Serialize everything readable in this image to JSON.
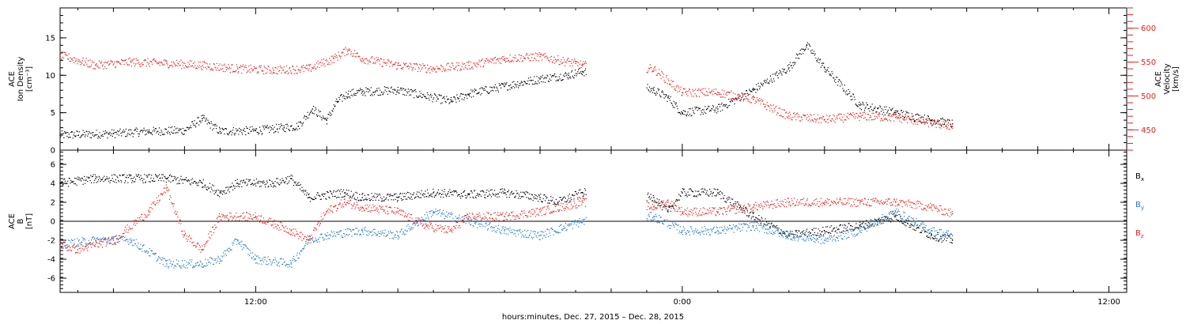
{
  "colors": {
    "black": "#000000",
    "red": "#e8211f",
    "blue": "#1f78c8"
  },
  "x_label": "hours:minutes, Dec. 27, 2015 – Dec. 28, 2015",
  "x_ticks": [
    {
      "label": "12:00",
      "hours": 12
    },
    {
      "label": "0:00",
      "hours": 24
    },
    {
      "label": "12:00",
      "hours": 36
    }
  ],
  "chart_data": [
    {
      "type": "scatter",
      "panel": "top",
      "x_unit": "hours since Dec. 27, 2015 0:00",
      "xlim": [
        6.5,
        36.5
      ],
      "left_axis": {
        "label_lines": [
          "ACE",
          "Ion Density",
          "[cm⁻³]"
        ],
        "ylim": [
          0,
          19
        ],
        "ticks": [
          "0",
          "5",
          "10",
          "15"
        ],
        "tick_values": [
          0,
          5,
          10,
          15
        ]
      },
      "right_axis": {
        "label_lines": [
          "ACE",
          "Velocity",
          "[km/s]"
        ],
        "ylim": [
          420,
          630
        ],
        "ticks": [
          "450",
          "500",
          "550",
          "600"
        ],
        "tick_values": [
          450,
          500,
          550,
          600
        ]
      },
      "data_gap": [
        21.3,
        23.0
      ],
      "series": [
        {
          "key": "density",
          "axis": "left",
          "color": "black",
          "points": [
            [
              6.5,
              2.0
            ],
            [
              8,
              2.2
            ],
            [
              9,
              2.5
            ],
            [
              10,
              2.6
            ],
            [
              10.5,
              4.2
            ],
            [
              11,
              2.5
            ],
            [
              12,
              2.6
            ],
            [
              12.8,
              3.0
            ],
            [
              13.2,
              3.2
            ],
            [
              13.6,
              5.5
            ],
            [
              14,
              4.0
            ],
            [
              14.3,
              6.5
            ],
            [
              14.6,
              7.5
            ],
            [
              15,
              7.8
            ],
            [
              16,
              8.0
            ],
            [
              17.5,
              6.5
            ],
            [
              18,
              7.5
            ],
            [
              19,
              8.5
            ],
            [
              20,
              9.5
            ],
            [
              20.8,
              10.0
            ],
            [
              21.2,
              10.5
            ],
            [
              23.2,
              8.0
            ],
            [
              23.6,
              7.0
            ],
            [
              24,
              5.0
            ],
            [
              25,
              5.5
            ],
            [
              26,
              8.0
            ],
            [
              27,
              11.0
            ],
            [
              27.5,
              14.0
            ],
            [
              28,
              11.0
            ],
            [
              29,
              6.0
            ],
            [
              30,
              5.0
            ],
            [
              31,
              4.0
            ],
            [
              31.6,
              3.5
            ]
          ]
        },
        {
          "key": "velocity",
          "axis": "right",
          "color": "red",
          "points": [
            [
              6.5,
              560
            ],
            [
              7.5,
              545
            ],
            [
              8.5,
              550
            ],
            [
              9.5,
              548
            ],
            [
              10.5,
              545
            ],
            [
              11.5,
              540
            ],
            [
              12.5,
              538
            ],
            [
              13.5,
              540
            ],
            [
              14.2,
              555
            ],
            [
              14.6,
              568
            ],
            [
              15,
              555
            ],
            [
              16,
              545
            ],
            [
              17,
              540
            ],
            [
              18,
              545
            ],
            [
              19,
              555
            ],
            [
              20,
              558
            ],
            [
              21,
              548
            ],
            [
              21.2,
              545
            ],
            [
              23.2,
              540
            ],
            [
              24,
              505
            ],
            [
              25,
              505
            ],
            [
              26,
              495
            ],
            [
              27,
              470
            ],
            [
              28,
              465
            ],
            [
              29,
              470
            ],
            [
              30,
              468
            ],
            [
              31,
              460
            ],
            [
              31.6,
              455
            ]
          ]
        }
      ]
    },
    {
      "type": "scatter",
      "panel": "bottom",
      "x_unit": "hours since Dec. 27, 2015 0:00",
      "xlim": [
        6.5,
        36.5
      ],
      "left_axis": {
        "label_lines": [
          "ACE",
          "B",
          "[nT]"
        ],
        "ylim": [
          -7.5,
          7.5
        ],
        "ticks": [
          "-6",
          "-4",
          "-2",
          "0",
          "2",
          "4",
          "6"
        ],
        "tick_values": [
          -6,
          -4,
          -2,
          0,
          2,
          4,
          6
        ]
      },
      "zero_line": true,
      "data_gap": [
        21.3,
        23.0
      ],
      "legend": [
        {
          "name": "Bx",
          "base": "B",
          "sub": "x",
          "color": "black"
        },
        {
          "name": "By",
          "base": "B",
          "sub": "y",
          "color": "blue"
        },
        {
          "name": "Bz",
          "base": "B",
          "sub": "z",
          "color": "red"
        }
      ],
      "series": [
        {
          "name": "Bx",
          "color": "black",
          "points": [
            [
              6.5,
              4.0
            ],
            [
              7.5,
              4.5
            ],
            [
              8.5,
              4.5
            ],
            [
              9.5,
              4.5
            ],
            [
              10.5,
              4.0
            ],
            [
              11,
              3.0
            ],
            [
              11.5,
              4.0
            ],
            [
              12.5,
              4.0
            ],
            [
              13,
              4.5
            ],
            [
              13.5,
              2.5
            ],
            [
              14.5,
              3.0
            ],
            [
              15,
              2.5
            ],
            [
              16,
              2.5
            ],
            [
              17,
              3.0
            ],
            [
              18,
              2.8
            ],
            [
              19,
              3.0
            ],
            [
              20,
              2.5
            ],
            [
              20.5,
              2.0
            ],
            [
              21.2,
              3.0
            ],
            [
              23.2,
              2.5
            ],
            [
              23.6,
              1.0
            ],
            [
              24,
              3.0
            ],
            [
              25,
              3.0
            ],
            [
              26,
              0.5
            ],
            [
              27,
              -1.5
            ],
            [
              28,
              -1.0
            ],
            [
              29,
              -0.5
            ],
            [
              30,
              0.5
            ],
            [
              31,
              -1.5
            ],
            [
              31.6,
              -2.0
            ]
          ]
        },
        {
          "name": "By",
          "color": "blue",
          "points": [
            [
              6.5,
              -2.5
            ],
            [
              7.5,
              -2.0
            ],
            [
              8.5,
              -2.0
            ],
            [
              9.5,
              -4.5
            ],
            [
              10.5,
              -4.5
            ],
            [
              11,
              -4.0
            ],
            [
              11.5,
              -2.0
            ],
            [
              12,
              -4.0
            ],
            [
              13,
              -4.5
            ],
            [
              13.5,
              -2.0
            ],
            [
              14,
              -1.5
            ],
            [
              15,
              -1.0
            ],
            [
              16,
              -1.5
            ],
            [
              17,
              1.0
            ],
            [
              18,
              0.0
            ],
            [
              19,
              -1.0
            ],
            [
              20,
              -1.5
            ],
            [
              21.2,
              0.0
            ],
            [
              23.2,
              0.5
            ],
            [
              24,
              -1.0
            ],
            [
              25,
              -1.0
            ],
            [
              26,
              -0.5
            ],
            [
              27,
              -1.5
            ],
            [
              28,
              -2.0
            ],
            [
              29,
              -1.0
            ],
            [
              30,
              1.0
            ],
            [
              31,
              -1.0
            ],
            [
              31.6,
              -1.5
            ]
          ]
        },
        {
          "name": "Bz",
          "color": "red",
          "points": [
            [
              6.5,
              -2.5
            ],
            [
              7,
              -3.0
            ],
            [
              8,
              -2.0
            ],
            [
              9,
              1.0
            ],
            [
              9.5,
              3.5
            ],
            [
              10,
              -1.5
            ],
            [
              10.5,
              -3.0
            ],
            [
              11,
              0.5
            ],
            [
              12,
              0.5
            ],
            [
              13,
              -1.0
            ],
            [
              13.5,
              -2.0
            ],
            [
              14,
              1.0
            ],
            [
              14.5,
              2.0
            ],
            [
              15,
              1.5
            ],
            [
              16,
              1.0
            ],
            [
              16.8,
              -0.5
            ],
            [
              17.5,
              -1.0
            ],
            [
              18,
              0.5
            ],
            [
              19,
              0.5
            ],
            [
              20,
              1.0
            ],
            [
              21.2,
              2.0
            ],
            [
              23.2,
              1.5
            ],
            [
              23.6,
              2.0
            ],
            [
              24,
              1.0
            ],
            [
              25,
              1.0
            ],
            [
              26,
              1.5
            ],
            [
              27,
              2.0
            ],
            [
              28,
              2.0
            ],
            [
              29,
              2.0
            ],
            [
              30,
              2.0
            ],
            [
              31,
              1.5
            ],
            [
              31.6,
              0.8
            ]
          ]
        }
      ]
    }
  ]
}
